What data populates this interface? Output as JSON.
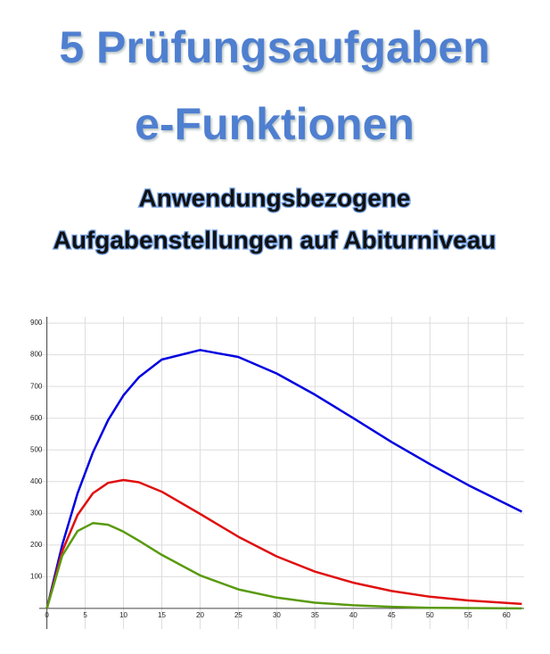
{
  "header": {
    "title_line1": "5 Prüfungsaufgaben",
    "title_line2": "e-Funktionen",
    "subtitle_line1": "Anwendungsbezogene",
    "subtitle_line2": "Aufgabenstellungen auf Abiturniveau"
  },
  "chart_data": {
    "type": "line",
    "x": [
      0,
      2,
      4,
      6,
      8,
      10,
      12,
      15,
      20,
      25,
      30,
      35,
      40,
      45,
      50,
      55,
      62
    ],
    "series": [
      {
        "color": "#0000e0",
        "values": [
          0,
          200,
          363,
          492,
          594,
          672,
          729,
          785,
          815,
          793,
          741,
          674,
          600,
          525,
          455,
          389,
          305
        ]
      },
      {
        "color": "#e01010",
        "values": [
          0,
          180,
          295,
          363,
          396,
          405,
          398,
          368,
          298,
          226,
          164,
          116,
          81,
          55,
          37,
          25,
          14
        ]
      },
      {
        "color": "#5a9a10",
        "values": [
          0,
          166,
          244,
          269,
          264,
          242,
          214,
          169,
          104,
          60,
          34,
          18,
          10,
          5,
          2,
          1,
          0
        ]
      }
    ],
    "xlim": [
      -1,
      62.3
    ],
    "ylim": [
      -65,
      920
    ],
    "xticks": [
      0,
      5,
      10,
      15,
      20,
      25,
      30,
      35,
      40,
      45,
      50,
      55,
      60
    ],
    "yticks": [
      100,
      200,
      300,
      400,
      500,
      600,
      700,
      800,
      900
    ],
    "grid": true
  }
}
